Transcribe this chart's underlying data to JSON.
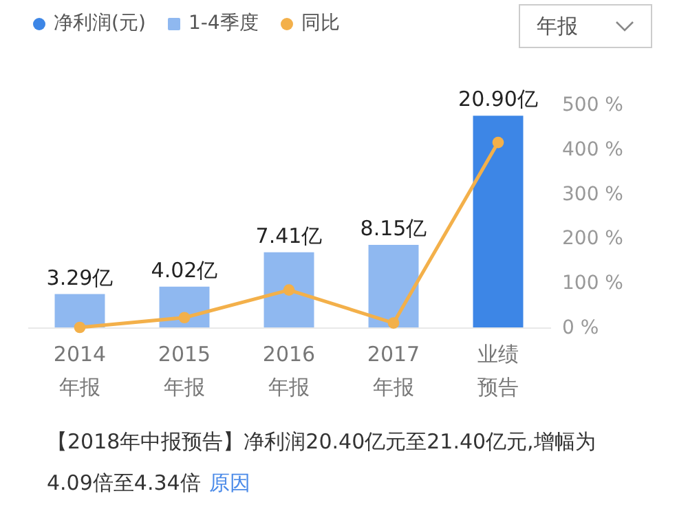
{
  "chart_data": {
    "type": "bar",
    "categories": [
      "2014年报",
      "2015年报",
      "2016年报",
      "2017年报",
      "业绩预告"
    ],
    "series": [
      {
        "name": "净利润(元)",
        "color": "#3d86e6",
        "values": [
          null,
          null,
          null,
          null,
          20.9
        ],
        "value_labels": [
          null,
          null,
          null,
          null,
          "20.90亿"
        ]
      },
      {
        "name": "1-4季度",
        "color": "#8fb8f0",
        "values": [
          3.29,
          4.02,
          7.41,
          8.15,
          null
        ],
        "value_labels": [
          "3.29亿",
          "4.02亿",
          "7.41亿",
          "8.15亿",
          null
        ]
      },
      {
        "name": "同比",
        "type": "line",
        "axis": "y2",
        "color": "#f3b04a",
        "values": [
          0,
          22,
          84,
          10,
          415
        ]
      }
    ],
    "y2lim": [
      0,
      500
    ],
    "y2ticks": [
      {
        "value": 0,
        "label": "0 %"
      },
      {
        "value": 100,
        "label": "100 %"
      },
      {
        "value": 200,
        "label": "200 %"
      },
      {
        "value": 300,
        "label": "300 %"
      },
      {
        "value": 400,
        "label": "400 %"
      },
      {
        "value": 500,
        "label": "500 %"
      }
    ],
    "marker": "circle",
    "legend": "top left",
    "annotations": [
      "年报",
      "【2018年中报预告】净利润20.40亿元至21.40亿元,增幅为4.09倍至4.34倍",
      "原因"
    ]
  }
}
